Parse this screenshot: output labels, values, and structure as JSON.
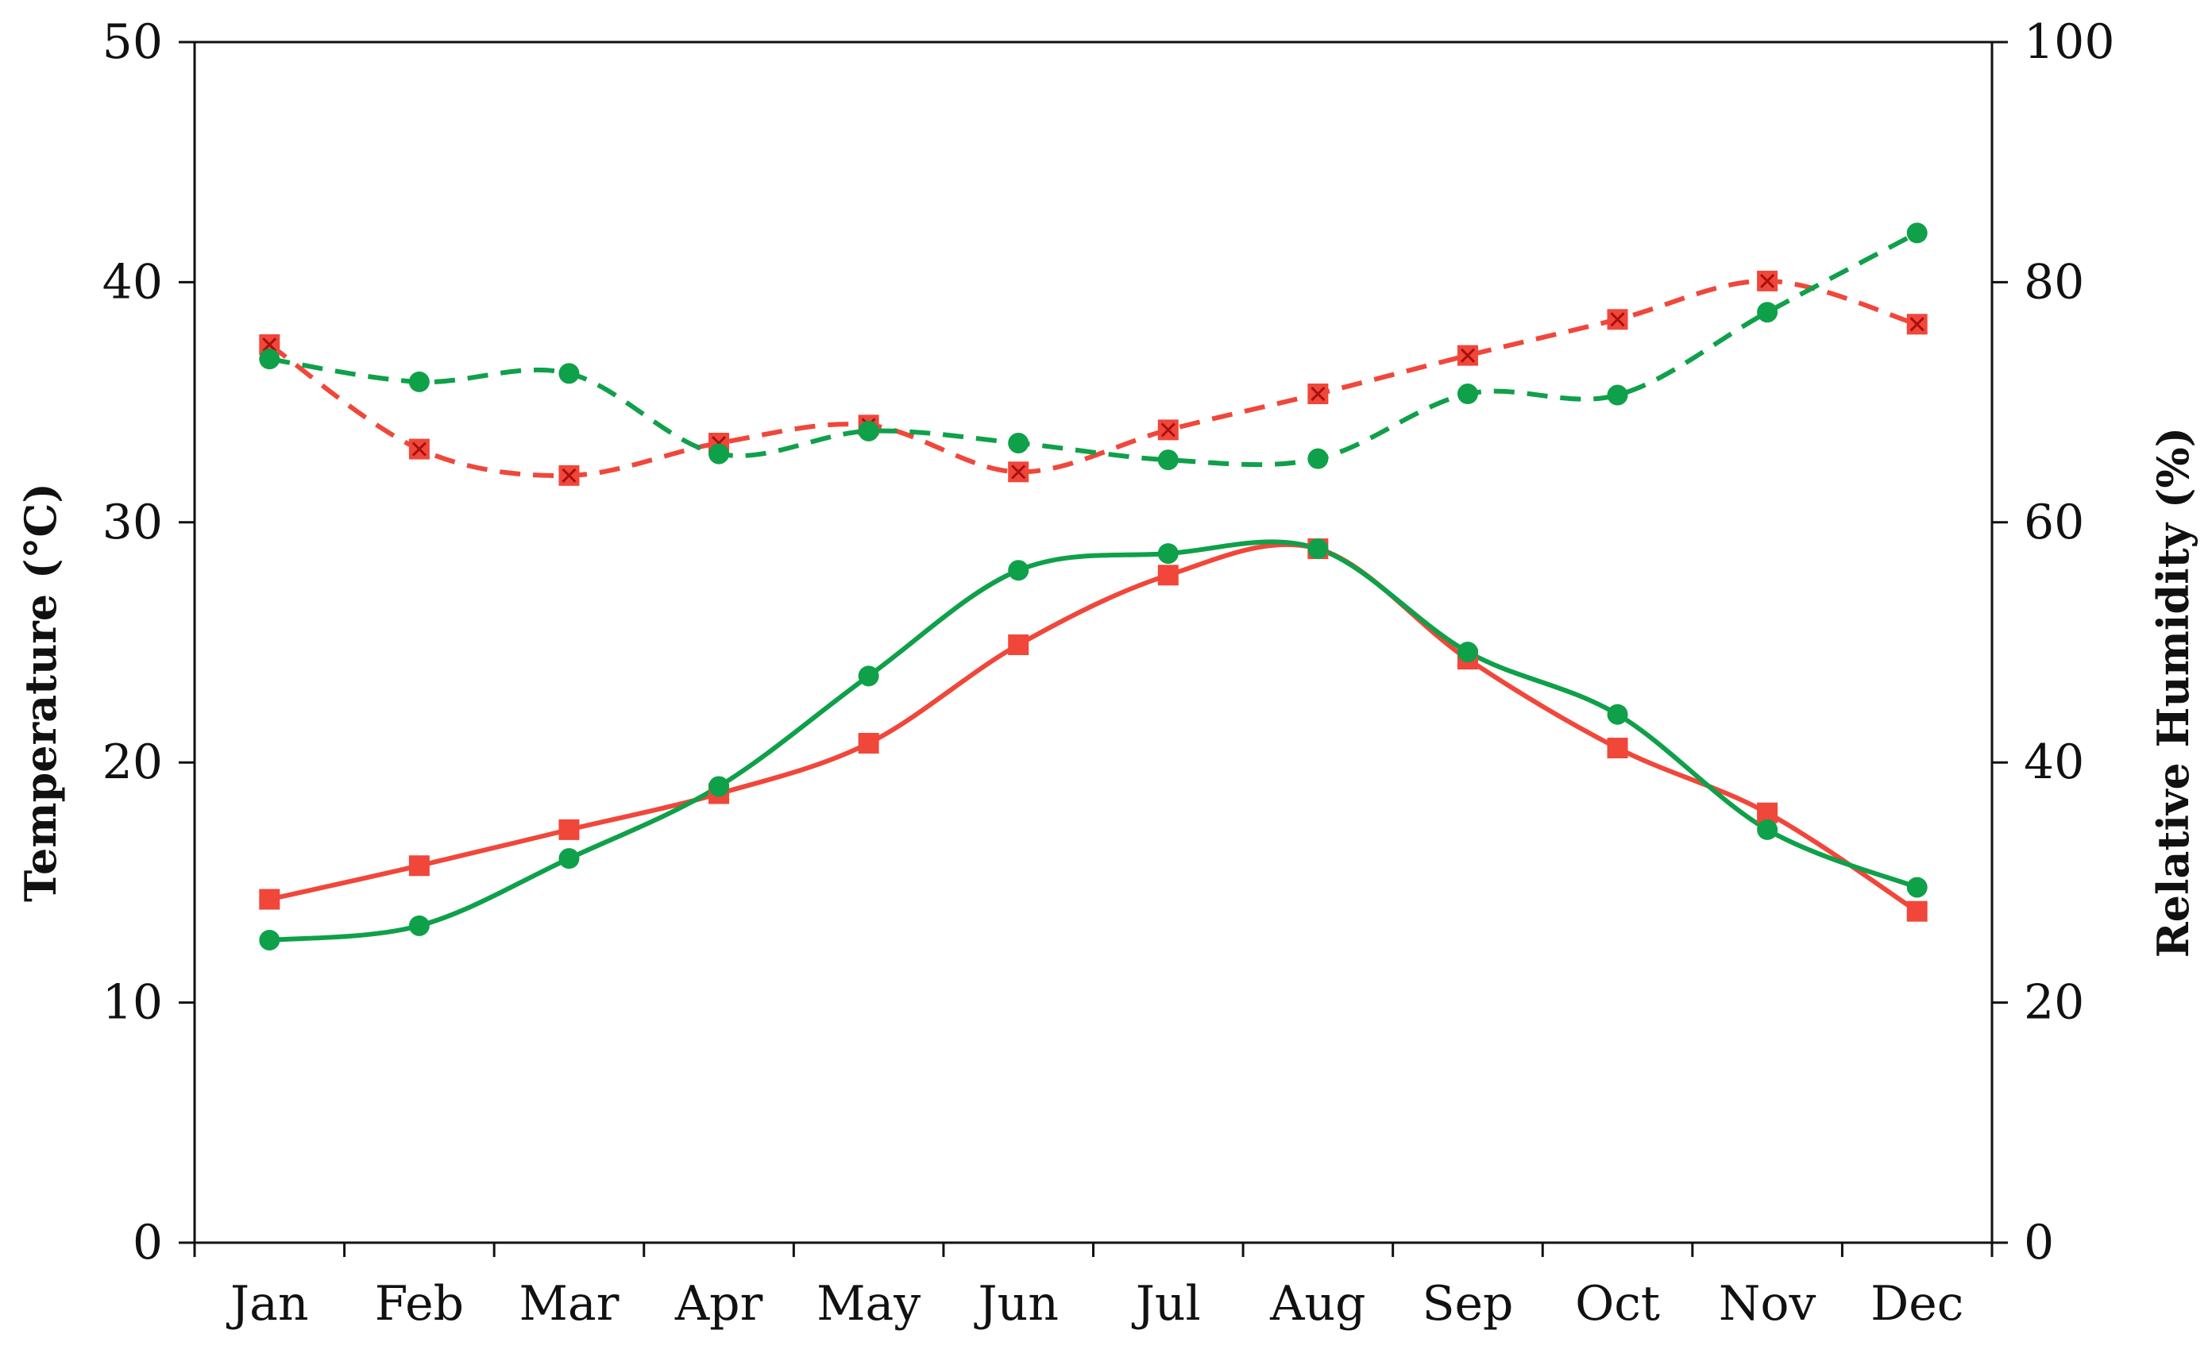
{
  "chart_data": {
    "type": "line",
    "title": "",
    "categories": [
      "Jan",
      "Feb",
      "Mar",
      "Apr",
      "May",
      "Jun",
      "Jul",
      "Aug",
      "Sep",
      "Oct",
      "Nov",
      "Dec"
    ],
    "ylabel_left": "Temperature (°C)",
    "ylabel_right": "Relative Humidity (%)",
    "ylim_left": [
      0,
      50
    ],
    "ylim_right": [
      0,
      100
    ],
    "yticks_left": [
      0,
      10,
      20,
      30,
      40,
      50
    ],
    "yticks_right": [
      0,
      20,
      40,
      60,
      80,
      100
    ],
    "grid": false,
    "series": [
      {
        "axis": "left",
        "color": "#f0473a",
        "marker": "square",
        "dash": "solid",
        "values": [
          14.3,
          15.7,
          17.2,
          18.7,
          20.8,
          24.9,
          27.8,
          28.9,
          24.3,
          20.6,
          17.9,
          13.8
        ]
      },
      {
        "axis": "left",
        "color": "#0fa04a",
        "marker": "circle",
        "dash": "solid",
        "values": [
          12.6,
          13.2,
          16.0,
          19.0,
          23.6,
          28.0,
          28.7,
          28.9,
          24.6,
          22.0,
          17.2,
          14.8
        ]
      },
      {
        "axis": "right",
        "color": "#f0473a",
        "marker": "square-x",
        "dash": "dashed",
        "values": [
          74.8,
          66.1,
          63.9,
          66.6,
          68.1,
          64.2,
          67.7,
          70.7,
          73.9,
          76.9,
          80.1,
          76.5
        ]
      },
      {
        "axis": "right",
        "color": "#0fa04a",
        "marker": "circle",
        "dash": "dashed",
        "values": [
          73.6,
          71.7,
          72.4,
          65.7,
          67.6,
          66.6,
          65.2,
          65.3,
          70.7,
          70.6,
          77.5,
          84.1
        ]
      }
    ]
  }
}
